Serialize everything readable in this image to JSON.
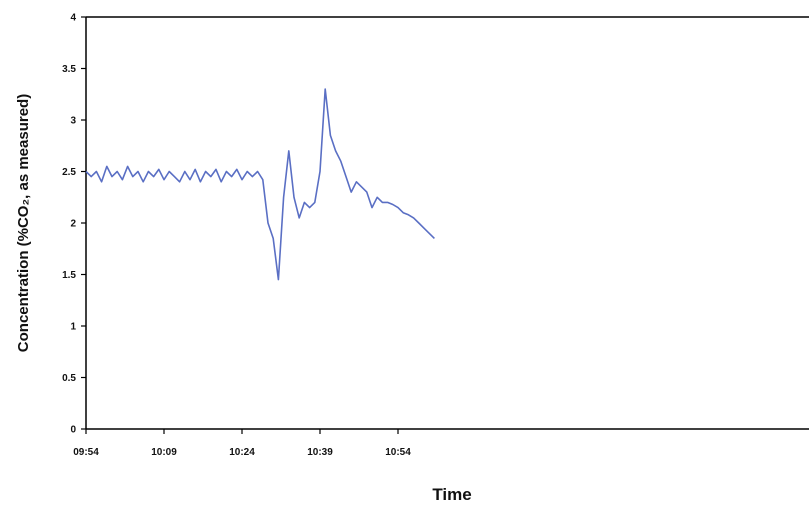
{
  "chart_data": {
    "type": "line",
    "title": "",
    "xlabel": "Time",
    "ylabel": "Concentration (%CO₂, as measured)",
    "ylim": [
      0,
      4
    ],
    "yticks": [
      "0",
      "0.5",
      "1",
      "1.5",
      "2",
      "2.5",
      "3",
      "3.5",
      "4"
    ],
    "xtick_labels": [
      "09:54",
      "10:09",
      "10:24",
      "10:39",
      "10:54"
    ],
    "grid": false,
    "line_color": "#5a6fc4",
    "series": [
      {
        "x": [
          "09:54",
          "09:55",
          "09:56",
          "09:57",
          "09:58",
          "09:59",
          "10:00",
          "10:01",
          "10:02",
          "10:03",
          "10:04",
          "10:05",
          "10:06",
          "10:07",
          "10:08",
          "10:09",
          "10:10",
          "10:11",
          "10:12",
          "10:13",
          "10:14",
          "10:15",
          "10:16",
          "10:17",
          "10:18",
          "10:19",
          "10:20",
          "10:21",
          "10:22",
          "10:23",
          "10:24",
          "10:25",
          "10:26",
          "10:27",
          "10:28",
          "10:29",
          "10:30",
          "10:31",
          "10:32",
          "10:33",
          "10:34",
          "10:35",
          "10:36",
          "10:37",
          "10:38",
          "10:39",
          "10:40",
          "10:41",
          "10:42",
          "10:43",
          "10:44",
          "10:45",
          "10:46",
          "10:47",
          "10:48",
          "10:49",
          "10:50",
          "10:51",
          "10:52",
          "10:53",
          "10:54",
          "10:55",
          "10:56",
          "10:57",
          "10:58",
          "10:59",
          "11:00",
          "11:01"
        ],
        "values": [
          2.5,
          2.45,
          2.5,
          2.4,
          2.55,
          2.45,
          2.5,
          2.42,
          2.55,
          2.45,
          2.5,
          2.4,
          2.5,
          2.45,
          2.52,
          2.42,
          2.5,
          2.45,
          2.4,
          2.5,
          2.42,
          2.52,
          2.4,
          2.5,
          2.45,
          2.52,
          2.4,
          2.5,
          2.45,
          2.52,
          2.42,
          2.5,
          2.45,
          2.5,
          2.42,
          2.0,
          1.85,
          1.45,
          2.25,
          2.7,
          2.25,
          2.05,
          2.2,
          2.15,
          2.2,
          2.5,
          3.3,
          2.85,
          2.7,
          2.6,
          2.45,
          2.3,
          2.4,
          2.35,
          2.3,
          2.15,
          2.25,
          2.2,
          2.2,
          2.18,
          2.15,
          2.1,
          2.08,
          2.05,
          2.0,
          1.95,
          1.9,
          1.85
        ]
      }
    ]
  }
}
